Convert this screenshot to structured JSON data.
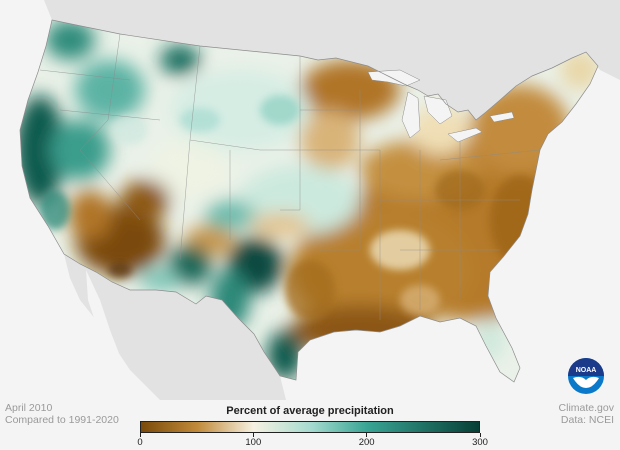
{
  "footer": {
    "date": "April 2010",
    "baseline": "Compared to 1991-2020",
    "site": "Climate.gov",
    "source": "Data: NCEI"
  },
  "legend": {
    "title": "Percent of average precipitation",
    "min": 0,
    "max": 300,
    "ticks": [
      {
        "value": 0,
        "label": "0"
      },
      {
        "value": 100,
        "label": "100"
      },
      {
        "value": 200,
        "label": "200"
      },
      {
        "value": 300,
        "label": "300"
      }
    ],
    "color_stops": [
      {
        "value": 0,
        "color": "#7a4a0a"
      },
      {
        "value": 50,
        "color": "#c18a3a"
      },
      {
        "value": 100,
        "color": "#f6f1e1"
      },
      {
        "value": 150,
        "color": "#a7dbd0"
      },
      {
        "value": 200,
        "color": "#3aa595"
      },
      {
        "value": 300,
        "color": "#073f36"
      }
    ]
  },
  "logo": {
    "text": "NOAA",
    "colors": {
      "top": "#1b3a8a",
      "bottom": "#0b79c9",
      "bird": "#ffffff"
    }
  },
  "map": {
    "land_color": "#e2e2e2",
    "water_color": "#f4f4f4",
    "boundary_color": "#8c8c8c"
  }
}
